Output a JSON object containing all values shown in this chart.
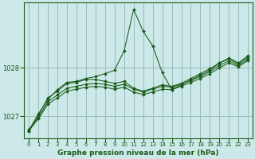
{
  "xlabel": "Graphe pression niveau de la mer (hPa)",
  "background_color": "#cce8e8",
  "grid_color": "#99bbbb",
  "line_color": "#1a5c1a",
  "xlim": [
    -0.5,
    23.5
  ],
  "ylim": [
    1026.55,
    1029.35
  ],
  "yticks": [
    1027,
    1028
  ],
  "xticks": [
    0,
    1,
    2,
    3,
    4,
    5,
    6,
    7,
    8,
    9,
    10,
    11,
    12,
    13,
    14,
    15,
    16,
    17,
    18,
    19,
    20,
    21,
    22,
    23
  ],
  "series": [
    {
      "x": [
        0,
        1,
        2,
        3,
        4,
        5,
        6,
        7,
        8,
        9,
        10,
        11,
        12,
        13,
        14,
        15,
        16,
        17,
        18,
        19,
        20,
        21,
        22,
        23
      ],
      "y": [
        1026.7,
        1027.05,
        1027.35,
        1027.55,
        1027.7,
        1027.72,
        1027.78,
        1027.82,
        1027.88,
        1027.95,
        1028.35,
        1029.2,
        1028.75,
        1028.45,
        1027.9,
        1027.55,
        1027.65,
        1027.75,
        1027.85,
        1027.95,
        1028.1,
        1028.2,
        1028.1,
        1028.25
      ]
    },
    {
      "x": [
        0,
        1,
        2,
        3,
        4,
        5,
        6,
        7,
        8,
        9,
        10,
        11,
        12,
        13,
        14,
        15,
        16,
        17,
        18,
        19,
        20,
        21,
        22,
        23
      ],
      "y": [
        1026.72,
        1027.02,
        1027.38,
        1027.52,
        1027.68,
        1027.7,
        1027.76,
        1027.76,
        1027.72,
        1027.68,
        1027.72,
        1027.58,
        1027.52,
        1027.58,
        1027.65,
        1027.62,
        1027.68,
        1027.78,
        1027.88,
        1027.98,
        1028.1,
        1028.18,
        1028.08,
        1028.22
      ]
    },
    {
      "x": [
        0,
        1,
        2,
        3,
        4,
        5,
        6,
        7,
        8,
        9,
        10,
        11,
        12,
        13,
        14,
        15,
        16,
        17,
        18,
        19,
        20,
        21,
        22,
        23
      ],
      "y": [
        1026.72,
        1026.98,
        1027.3,
        1027.44,
        1027.58,
        1027.62,
        1027.66,
        1027.68,
        1027.66,
        1027.62,
        1027.66,
        1027.56,
        1027.5,
        1027.56,
        1027.62,
        1027.6,
        1027.66,
        1027.74,
        1027.82,
        1027.92,
        1028.05,
        1028.14,
        1028.05,
        1028.18
      ]
    },
    {
      "x": [
        0,
        1,
        2,
        3,
        4,
        5,
        6,
        7,
        8,
        9,
        10,
        11,
        12,
        13,
        14,
        15,
        16,
        17,
        18,
        19,
        20,
        21,
        22,
        23
      ],
      "y": [
        1026.7,
        1026.95,
        1027.25,
        1027.38,
        1027.52,
        1027.56,
        1027.6,
        1027.62,
        1027.6,
        1027.56,
        1027.6,
        1027.5,
        1027.45,
        1027.5,
        1027.56,
        1027.55,
        1027.62,
        1027.7,
        1027.78,
        1027.88,
        1028.0,
        1028.1,
        1028.02,
        1028.15
      ]
    }
  ]
}
